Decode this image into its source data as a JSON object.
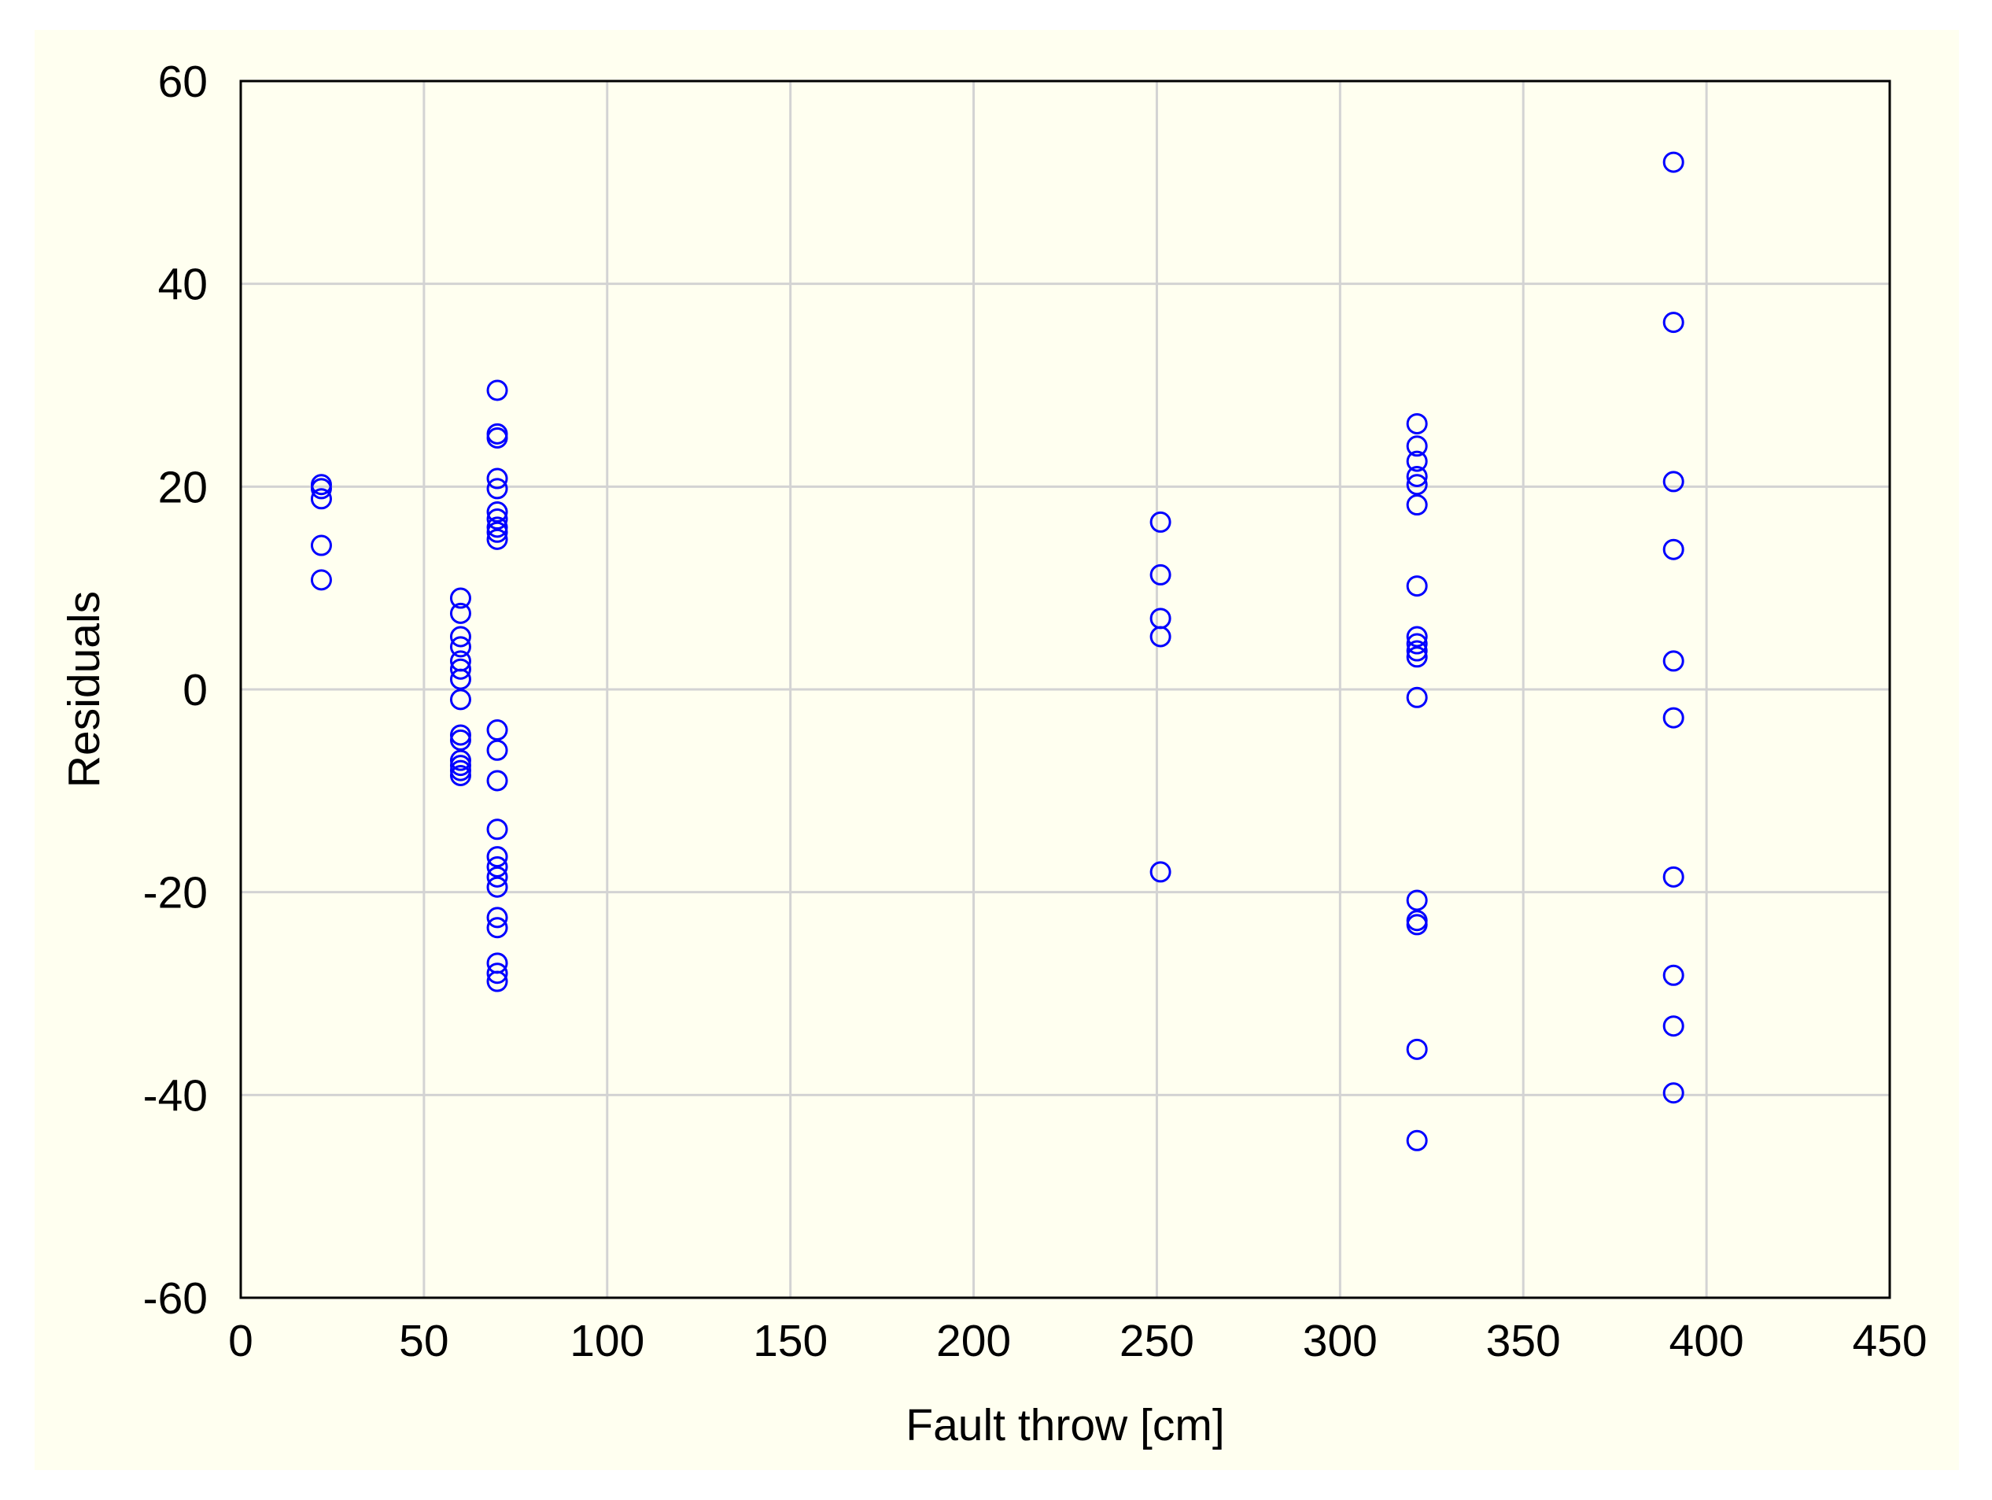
{
  "chart_data": {
    "type": "scatter",
    "title": "",
    "xlabel": "Fault throw [cm]",
    "ylabel": "Residuals",
    "xlim": [
      0,
      450
    ],
    "ylim": [
      -60,
      60
    ],
    "xticks": [
      0,
      50,
      100,
      150,
      200,
      250,
      300,
      350,
      400,
      450
    ],
    "yticks": [
      -60,
      -40,
      -20,
      0,
      20,
      40,
      60
    ],
    "grid": true,
    "marker": "open-circle",
    "color": "#0000ff",
    "points": [
      [
        22,
        20.2
      ],
      [
        22,
        19.8
      ],
      [
        22,
        18.8
      ],
      [
        22,
        14.2
      ],
      [
        22,
        10.8
      ],
      [
        60,
        9.0
      ],
      [
        60,
        7.5
      ],
      [
        60,
        5.2
      ],
      [
        60,
        4.2
      ],
      [
        60,
        2.8
      ],
      [
        60,
        2.0
      ],
      [
        60,
        1.0
      ],
      [
        60,
        -1.0
      ],
      [
        60,
        -4.5
      ],
      [
        60,
        -5.0
      ],
      [
        60,
        -7.0
      ],
      [
        60,
        -7.5
      ],
      [
        60,
        -8.0
      ],
      [
        60,
        -8.5
      ],
      [
        70,
        29.5
      ],
      [
        70,
        25.2
      ],
      [
        70,
        24.8
      ],
      [
        70,
        20.8
      ],
      [
        70,
        19.8
      ],
      [
        70,
        17.5
      ],
      [
        70,
        16.8
      ],
      [
        70,
        16.0
      ],
      [
        70,
        15.5
      ],
      [
        70,
        14.8
      ],
      [
        70,
        -4.0
      ],
      [
        70,
        -6.0
      ],
      [
        70,
        -9.0
      ],
      [
        70,
        -13.8
      ],
      [
        70,
        -16.5
      ],
      [
        70,
        -17.5
      ],
      [
        70,
        -18.5
      ],
      [
        70,
        -19.5
      ],
      [
        70,
        -22.5
      ],
      [
        70,
        -23.5
      ],
      [
        70,
        -27.0
      ],
      [
        70,
        -28.0
      ],
      [
        70,
        -28.8
      ],
      [
        251,
        16.5
      ],
      [
        251,
        11.3
      ],
      [
        251,
        7.0
      ],
      [
        251,
        5.2
      ],
      [
        251,
        -18.0
      ],
      [
        321,
        26.2
      ],
      [
        321,
        24.0
      ],
      [
        321,
        22.5
      ],
      [
        321,
        21.0
      ],
      [
        321,
        20.2
      ],
      [
        321,
        18.2
      ],
      [
        321,
        10.2
      ],
      [
        321,
        5.2
      ],
      [
        321,
        4.5
      ],
      [
        321,
        3.8
      ],
      [
        321,
        3.2
      ],
      [
        321,
        -0.8
      ],
      [
        321,
        -20.8
      ],
      [
        321,
        -22.8
      ],
      [
        321,
        -23.2
      ],
      [
        321,
        -35.5
      ],
      [
        321,
        -44.5
      ],
      [
        391,
        52.0
      ],
      [
        391,
        36.2
      ],
      [
        391,
        20.5
      ],
      [
        391,
        13.8
      ],
      [
        391,
        2.8
      ],
      [
        391,
        -2.8
      ],
      [
        391,
        -18.5
      ],
      [
        391,
        -28.2
      ],
      [
        391,
        -33.2
      ],
      [
        391,
        -39.8
      ]
    ]
  }
}
